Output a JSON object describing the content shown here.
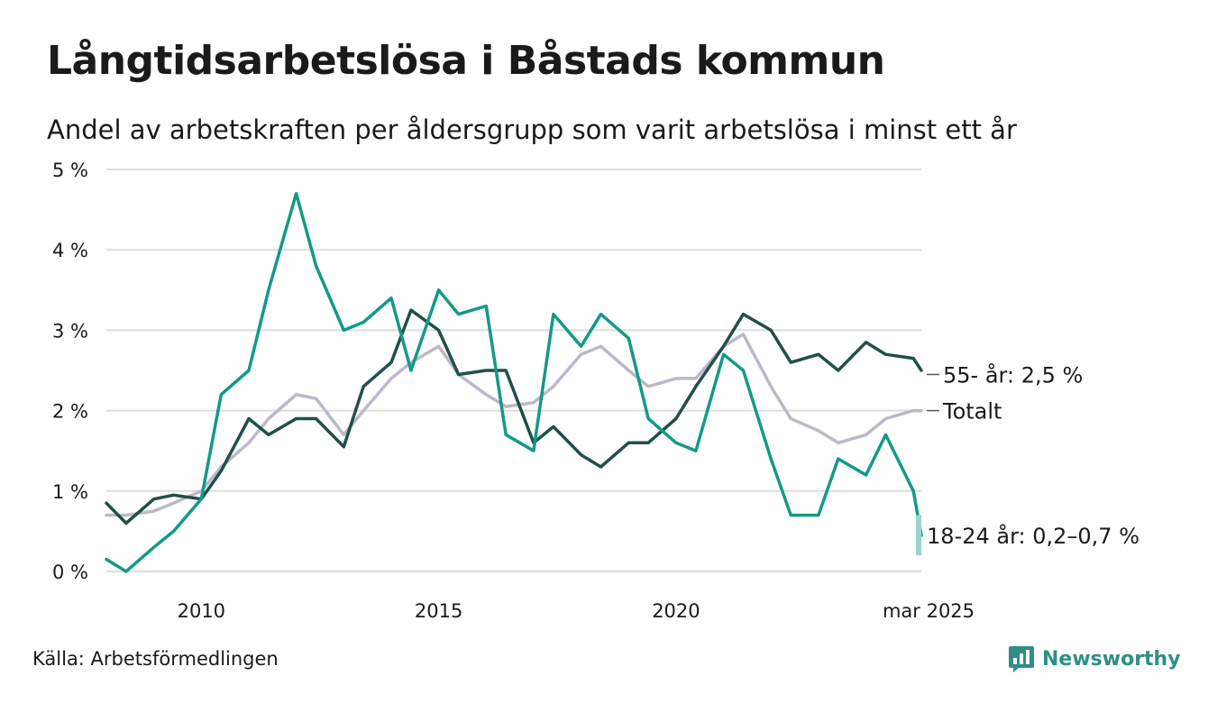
{
  "title": "Långtidsarbetslösa i Båstads kommun",
  "subtitle": "Andel av arbetskraften per åldersgrupp som varit arbetslösa i minst ett år",
  "source": "Källa: Arbetsförmedlingen",
  "brand": {
    "name": "Newsworthy",
    "color": "#2f8f86",
    "icon": "newsworthy-logo-icon"
  },
  "chart_data": {
    "type": "line",
    "title": "Långtidsarbetslösa i Båstads kommun",
    "subtitle": "Andel av arbetskraften per åldersgrupp som varit arbetslösa i minst ett år",
    "y_unit": "%",
    "ylim": [
      0,
      5
    ],
    "y_ticks": [
      0,
      1,
      2,
      3,
      4,
      5
    ],
    "y_tick_labels": [
      "0 %",
      "1 %",
      "2 %",
      "3 %",
      "4 %",
      "5 %"
    ],
    "xlim": [
      "2008-01",
      "2025-03"
    ],
    "x_ticks": [
      "2010-01",
      "2015-01",
      "2020-01",
      "2025-03"
    ],
    "x_tick_labels": [
      "2010",
      "2015",
      "2020",
      "mar 2025"
    ],
    "grid": true,
    "series": [
      {
        "name": "Totalt",
        "end_label": "Totalt",
        "color": "#bdb8c8",
        "points": [
          [
            "2008-01",
            0.7
          ],
          [
            "2008-06",
            0.7
          ],
          [
            "2009-01",
            0.75
          ],
          [
            "2009-06",
            0.85
          ],
          [
            "2010-01",
            1.0
          ],
          [
            "2010-06",
            1.3
          ],
          [
            "2011-01",
            1.6
          ],
          [
            "2011-06",
            1.9
          ],
          [
            "2012-01",
            2.2
          ],
          [
            "2012-06",
            2.15
          ],
          [
            "2013-01",
            1.7
          ],
          [
            "2013-06",
            2.0
          ],
          [
            "2014-01",
            2.4
          ],
          [
            "2014-06",
            2.6
          ],
          [
            "2015-01",
            2.8
          ],
          [
            "2015-06",
            2.45
          ],
          [
            "2016-01",
            2.2
          ],
          [
            "2016-06",
            2.05
          ],
          [
            "2017-01",
            2.1
          ],
          [
            "2017-06",
            2.3
          ],
          [
            "2018-01",
            2.7
          ],
          [
            "2018-06",
            2.8
          ],
          [
            "2019-01",
            2.5
          ],
          [
            "2019-06",
            2.3
          ],
          [
            "2020-01",
            2.4
          ],
          [
            "2020-06",
            2.4
          ],
          [
            "2021-01",
            2.8
          ],
          [
            "2021-06",
            2.95
          ],
          [
            "2022-01",
            2.3
          ],
          [
            "2022-06",
            1.9
          ],
          [
            "2023-01",
            1.75
          ],
          [
            "2023-06",
            1.6
          ],
          [
            "2024-01",
            1.7
          ],
          [
            "2024-06",
            1.9
          ],
          [
            "2025-01",
            2.0
          ],
          [
            "2025-03",
            2.0
          ]
        ]
      },
      {
        "name": "55- år",
        "end_label": "55- år: 2,5 %",
        "color": "#1e5048",
        "points": [
          [
            "2008-01",
            0.85
          ],
          [
            "2008-06",
            0.6
          ],
          [
            "2009-01",
            0.9
          ],
          [
            "2009-06",
            0.95
          ],
          [
            "2010-01",
            0.9
          ],
          [
            "2010-06",
            1.25
          ],
          [
            "2011-01",
            1.9
          ],
          [
            "2011-06",
            1.7
          ],
          [
            "2012-01",
            1.9
          ],
          [
            "2012-06",
            1.9
          ],
          [
            "2013-01",
            1.55
          ],
          [
            "2013-06",
            2.3
          ],
          [
            "2014-01",
            2.6
          ],
          [
            "2014-06",
            3.25
          ],
          [
            "2015-01",
            3.0
          ],
          [
            "2015-06",
            2.45
          ],
          [
            "2016-01",
            2.5
          ],
          [
            "2016-06",
            2.5
          ],
          [
            "2017-01",
            1.6
          ],
          [
            "2017-06",
            1.8
          ],
          [
            "2018-01",
            1.45
          ],
          [
            "2018-06",
            1.3
          ],
          [
            "2019-01",
            1.6
          ],
          [
            "2019-06",
            1.6
          ],
          [
            "2020-01",
            1.9
          ],
          [
            "2020-06",
            2.3
          ],
          [
            "2021-01",
            2.8
          ],
          [
            "2021-06",
            3.2
          ],
          [
            "2022-01",
            3.0
          ],
          [
            "2022-06",
            2.6
          ],
          [
            "2023-01",
            2.7
          ],
          [
            "2023-06",
            2.5
          ],
          [
            "2024-01",
            2.85
          ],
          [
            "2024-06",
            2.7
          ],
          [
            "2025-01",
            2.65
          ],
          [
            "2025-03",
            2.5
          ]
        ]
      },
      {
        "name": "18-24 år",
        "end_label": "18-24 år: 0,2–0,7 %",
        "color": "#139a86",
        "range_color": "#9bd3cb",
        "range_end": [
          0.2,
          0.7
        ],
        "points": [
          [
            "2008-01",
            0.15
          ],
          [
            "2008-06",
            0.0
          ],
          [
            "2009-01",
            0.3
          ],
          [
            "2009-06",
            0.5
          ],
          [
            "2010-01",
            0.9
          ],
          [
            "2010-06",
            2.2
          ],
          [
            "2011-01",
            2.5
          ],
          [
            "2011-06",
            3.5
          ],
          [
            "2012-01",
            4.7
          ],
          [
            "2012-06",
            3.8
          ],
          [
            "2013-01",
            3.0
          ],
          [
            "2013-06",
            3.1
          ],
          [
            "2014-01",
            3.4
          ],
          [
            "2014-06",
            2.5
          ],
          [
            "2015-01",
            3.5
          ],
          [
            "2015-06",
            3.2
          ],
          [
            "2016-01",
            3.3
          ],
          [
            "2016-06",
            1.7
          ],
          [
            "2017-01",
            1.5
          ],
          [
            "2017-06",
            3.2
          ],
          [
            "2018-01",
            2.8
          ],
          [
            "2018-06",
            3.2
          ],
          [
            "2019-01",
            2.9
          ],
          [
            "2019-06",
            1.9
          ],
          [
            "2020-01",
            1.6
          ],
          [
            "2020-06",
            1.5
          ],
          [
            "2021-01",
            2.7
          ],
          [
            "2021-06",
            2.5
          ],
          [
            "2022-01",
            1.4
          ],
          [
            "2022-06",
            0.7
          ],
          [
            "2023-01",
            0.7
          ],
          [
            "2023-06",
            1.4
          ],
          [
            "2024-01",
            1.2
          ],
          [
            "2024-06",
            1.7
          ],
          [
            "2025-01",
            1.0
          ],
          [
            "2025-03",
            0.45
          ]
        ]
      }
    ]
  }
}
